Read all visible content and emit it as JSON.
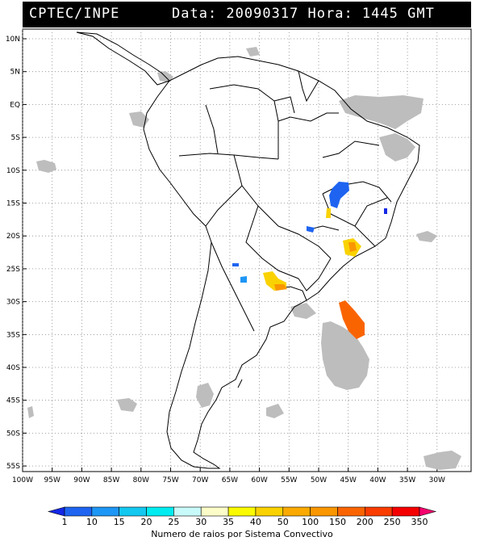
{
  "header": {
    "source": "CPTEC/INPE",
    "datetime": "Data: 20090317 Hora: 1445 GMT"
  },
  "map": {
    "lat_labels": [
      "10N",
      "5N",
      "EQ",
      "5S",
      "10S",
      "15S",
      "20S",
      "25S",
      "30S",
      "35S",
      "40S",
      "45S",
      "50S",
      "55S"
    ],
    "lon_labels": [
      "100W",
      "95W",
      "90W",
      "85W",
      "80W",
      "75W",
      "70W",
      "65W",
      "60W",
      "55W",
      "50W",
      "45W",
      "40W",
      "35W",
      "30W"
    ],
    "grid": "dotted"
  },
  "legend": {
    "label": "Numero de raios por Sistema Convectivo",
    "ticks": [
      "1",
      "10",
      "15",
      "20",
      "25",
      "30",
      "35",
      "40",
      "50",
      "100",
      "150",
      "200",
      "250",
      "350"
    ],
    "colors": [
      "#1428e6",
      "#1e64f0",
      "#1e96f5",
      "#14c8f0",
      "#00ecf0",
      "#c8fafa",
      "#fcfcc8",
      "#fafa00",
      "#fad200",
      "#faaa00",
      "#fa9600",
      "#fa6400",
      "#fa3c00",
      "#f50000",
      "#f5006e"
    ]
  }
}
